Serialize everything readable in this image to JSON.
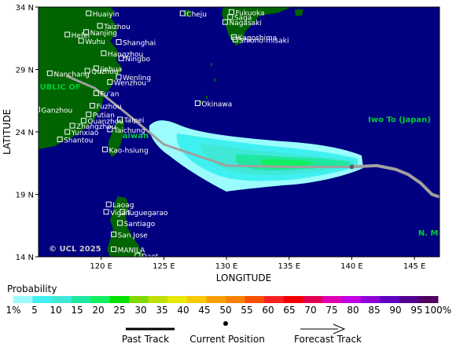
{
  "map": {
    "lon_range": [
      115,
      147
    ],
    "lat_range": [
      14,
      34
    ],
    "colors": {
      "ocean": "#000080",
      "land": "#006400",
      "city_text": "#ffffff",
      "region_text": "#00cc33",
      "track": "#a0a0a0",
      "track_forecast_end": "#808080"
    },
    "axes": {
      "ylabel": "LATITUDE",
      "xlabel": "LONGITUDE",
      "yticks": [
        {
          "v": 34,
          "label": "34 N"
        },
        {
          "v": 29,
          "label": "29 N"
        },
        {
          "v": 24,
          "label": "24 N"
        },
        {
          "v": 19,
          "label": "19 N"
        },
        {
          "v": 14,
          "label": "14 N"
        }
      ],
      "xticks": [
        {
          "v": 120,
          "label": "120 E"
        },
        {
          "v": 125,
          "label": "125 E"
        },
        {
          "v": 130,
          "label": "130 E"
        },
        {
          "v": 135,
          "label": "135 E"
        },
        {
          "v": 140,
          "label": "140 E"
        },
        {
          "v": 145,
          "label": "145 E"
        }
      ]
    },
    "copyright": "© UCL 2025",
    "cities": [
      {
        "name": "Huaiyin",
        "lon": 119.0,
        "lat": 33.5
      },
      {
        "name": "Taizhou",
        "lon": 119.9,
        "lat": 32.5
      },
      {
        "name": "Nanjing",
        "lon": 118.8,
        "lat": 32.0
      },
      {
        "name": "Hefei",
        "lon": 117.3,
        "lat": 31.8
      },
      {
        "name": "Wuhu",
        "lon": 118.4,
        "lat": 31.3
      },
      {
        "name": "Shanghai",
        "lon": 121.4,
        "lat": 31.2
      },
      {
        "name": "Hangzhou",
        "lon": 120.2,
        "lat": 30.3
      },
      {
        "name": "Ningbo",
        "lon": 121.6,
        "lat": 29.9
      },
      {
        "name": "Nanchang",
        "lon": 115.9,
        "lat": 28.7
      },
      {
        "name": "Quzhou",
        "lon": 118.9,
        "lat": 28.9
      },
      {
        "name": "Wenling",
        "lon": 121.4,
        "lat": 28.4
      },
      {
        "name": "Jinhua",
        "lon": 119.6,
        "lat": 29.1
      },
      {
        "name": "Wenzhou",
        "lon": 120.7,
        "lat": 28.0
      },
      {
        "name": "Fu'an",
        "lon": 119.6,
        "lat": 27.1
      },
      {
        "name": "Fuzhou",
        "lon": 119.3,
        "lat": 26.1
      },
      {
        "name": "Ganzhou",
        "lon": 114.9,
        "lat": 25.8
      },
      {
        "name": "Putian",
        "lon": 119.0,
        "lat": 25.4
      },
      {
        "name": "Quanzhou",
        "lon": 118.6,
        "lat": 24.9
      },
      {
        "name": "Zhangzhou",
        "lon": 117.7,
        "lat": 24.5
      },
      {
        "name": "Yunxiao",
        "lon": 117.3,
        "lat": 24.0
      },
      {
        "name": "Shantou",
        "lon": 116.7,
        "lat": 23.4
      },
      {
        "name": "Taipei",
        "lon": 121.5,
        "lat": 25.0
      },
      {
        "name": "Taichung",
        "lon": 120.7,
        "lat": 24.2
      },
      {
        "name": "Kao-hsiung",
        "lon": 120.3,
        "lat": 22.6
      },
      {
        "name": "Cheju",
        "lon": 126.5,
        "lat": 33.5
      },
      {
        "name": "Fukuoka",
        "lon": 130.4,
        "lat": 33.6
      },
      {
        "name": "Saga",
        "lon": 130.3,
        "lat": 33.2
      },
      {
        "name": "Nagasaki",
        "lon": 129.9,
        "lat": 32.8
      },
      {
        "name": "Shiono-misaki",
        "lon": 130.7,
        "lat": 31.4
      },
      {
        "name": "Kagoshima",
        "lon": 130.6,
        "lat": 31.6
      },
      {
        "name": "Okinawa",
        "lon": 127.7,
        "lat": 26.3
      },
      {
        "name": "Laoag",
        "lon": 120.6,
        "lat": 18.2
      },
      {
        "name": "Tuguegarao",
        "lon": 121.7,
        "lat": 17.6
      },
      {
        "name": "Vigan",
        "lon": 120.4,
        "lat": 17.6
      },
      {
        "name": "Santiago",
        "lon": 121.5,
        "lat": 16.7
      },
      {
        "name": "San Jose",
        "lon": 121.0,
        "lat": 15.8
      },
      {
        "name": "MANILA",
        "lon": 121.0,
        "lat": 14.6
      },
      {
        "name": "Daet",
        "lon": 122.9,
        "lat": 14.1
      }
    ],
    "region_labels": [
      {
        "text": "Iwo To (Japan)",
        "lon": 141.3,
        "lat": 24.8
      },
      {
        "text": "N. Mariana",
        "lon": 145.3,
        "lat": 15.7
      },
      {
        "text": "UBLIC OF",
        "lon": 115.1,
        "lat": 27.4
      },
      {
        "text": "aiwan",
        "lon": 121.7,
        "lat": 23.5
      }
    ],
    "past_track": [
      {
        "lon": 117.2,
        "lat": 28.5
      },
      {
        "lon": 119.5,
        "lat": 27.5
      },
      {
        "lon": 122.0,
        "lat": 25.5
      },
      {
        "lon": 125.0,
        "lat": 23.0
      },
      {
        "lon": 130.0,
        "lat": 21.3
      },
      {
        "lon": 135.0,
        "lat": 21.2
      },
      {
        "lon": 139.5,
        "lat": 21.2
      },
      {
        "lon": 140.0,
        "lat": 21.2
      }
    ],
    "current_position": {
      "lon": 140.0,
      "lat": 21.2
    },
    "forecast_track": [
      {
        "lon": 140.0,
        "lat": 21.2
      },
      {
        "lon": 142.0,
        "lat": 21.3
      },
      {
        "lon": 143.5,
        "lat": 21.0
      },
      {
        "lon": 144.5,
        "lat": 20.6
      },
      {
        "lon": 145.5,
        "lat": 19.9
      },
      {
        "lon": 146.4,
        "lat": 19.0
      },
      {
        "lon": 147.0,
        "lat": 18.8
      }
    ]
  },
  "legend": {
    "title": "Probability",
    "colors": [
      "#9afcfc",
      "#40f0f0",
      "#40e8d8",
      "#20e8a0",
      "#10f060",
      "#00e000",
      "#80d800",
      "#c0e000",
      "#e8e800",
      "#f8c800",
      "#f8a000",
      "#f88000",
      "#f85000",
      "#f82020",
      "#f00000",
      "#e00050",
      "#e000b0",
      "#c000e0",
      "#9000d8",
      "#6000c0",
      "#500090",
      "#500060"
    ],
    "labels": [
      "1%",
      "5",
      "10",
      "15",
      "20",
      "25",
      "30",
      "35",
      "40",
      "45",
      "50",
      "55",
      "60",
      "65",
      "70",
      "75",
      "80",
      "85",
      "90",
      "95",
      "100%"
    ],
    "past_track": "Past Track",
    "current_position": "Current Position",
    "forecast_track": "Forecast Track"
  }
}
